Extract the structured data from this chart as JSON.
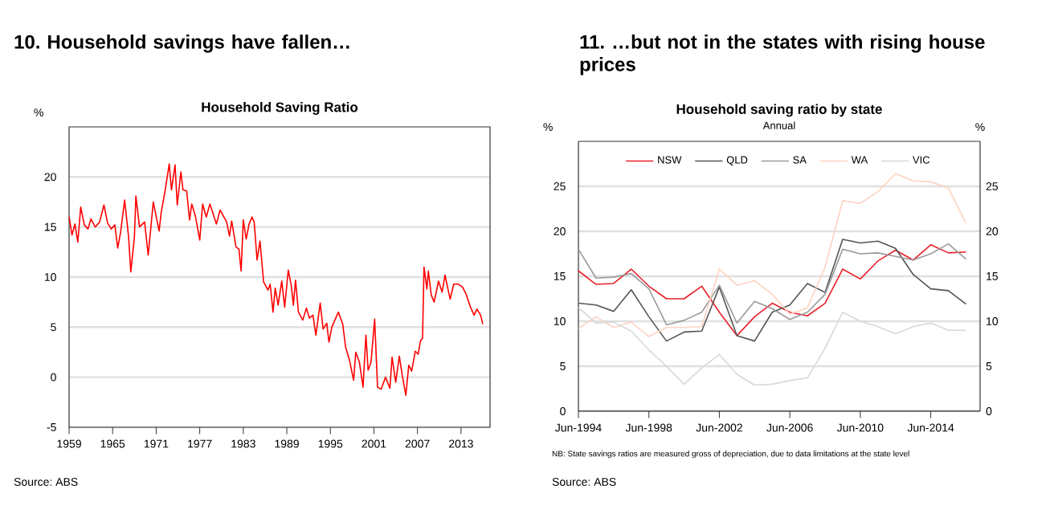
{
  "chart_data": [
    {
      "type": "line",
      "title": "Household Saving Ratio",
      "ylabel": "%",
      "annotations": [
        "10. Household savings have fallen…",
        "Source: ABS"
      ],
      "xlim": [
        1959,
        2017
      ],
      "ylim": [
        -5,
        25
      ],
      "xticks": [
        1959,
        1965,
        1971,
        1977,
        1983,
        1989,
        1995,
        2001,
        2007,
        2013
      ],
      "yticks": [
        -5,
        0,
        5,
        10,
        15,
        20
      ],
      "grid": "y",
      "marker": "none",
      "line_style": "solid",
      "series": [
        {
          "color": "#ff0000",
          "x": [
            1959.0,
            1959.4,
            1959.8,
            1960.2,
            1960.6,
            1961.1,
            1961.6,
            1962.0,
            1962.6,
            1963.2,
            1963.8,
            1964.3,
            1964.8,
            1965.3,
            1965.7,
            1966.1,
            1966.65,
            1967.2,
            1967.5,
            1968.0,
            1968.2,
            1968.7,
            1969.4,
            1969.9,
            1970.6,
            1971.4,
            1971.7,
            1972.2,
            1972.8,
            1973.1,
            1973.6,
            1973.9,
            1974.4,
            1974.7,
            1975.2,
            1975.6,
            1975.9,
            1976.4,
            1977.0,
            1977.4,
            1977.9,
            1978.4,
            1979.3,
            1979.8,
            1980.7,
            1981.1,
            1981.4,
            1982.0,
            1982.4,
            1982.7,
            1983.0,
            1983.4,
            1983.8,
            1984.2,
            1984.5,
            1984.9,
            1985.3,
            1985.8,
            1986.4,
            1986.7,
            1987.1,
            1987.4,
            1987.8,
            1988.3,
            1988.7,
            1989.2,
            1989.6,
            1989.9,
            1990.2,
            1990.6,
            1991.2,
            1991.7,
            1992.1,
            1992.6,
            1993.0,
            1993.6,
            1994.0,
            1994.5,
            1994.8,
            1995.2,
            1996.1,
            1996.7,
            1997.1,
            1997.6,
            1998.2,
            1998.5,
            1999.0,
            1999.5,
            1999.9,
            2000.2,
            2000.6,
            2001.1,
            2001.5,
            2002.0,
            2002.6,
            2003.2,
            2003.5,
            2004.0,
            2004.5,
            2004.9,
            2005.4,
            2005.8,
            2006.2,
            2006.7,
            2007.1,
            2007.4,
            2007.7,
            2007.9,
            2008.3,
            2008.5,
            2008.9,
            2009.3,
            2009.9,
            2010.4,
            2010.8,
            2011.2,
            2011.5,
            2012.0,
            2012.6,
            2013.2,
            2013.7,
            2014.3,
            2014.8,
            2015.2,
            2015.7,
            2016.0
          ],
          "values": [
            16.0,
            14.2,
            15.3,
            13.5,
            17.0,
            15.2,
            14.8,
            15.8,
            15.0,
            15.5,
            17.2,
            15.4,
            14.8,
            15.2,
            12.9,
            14.5,
            17.7,
            14.0,
            10.5,
            14.0,
            18.1,
            15.0,
            15.5,
            12.2,
            17.5,
            14.6,
            16.5,
            18.5,
            21.3,
            18.7,
            21.2,
            17.2,
            20.5,
            18.7,
            18.6,
            15.7,
            17.3,
            16.1,
            13.7,
            17.3,
            16.0,
            17.3,
            15.3,
            16.7,
            15.5,
            14.1,
            15.6,
            13.0,
            12.8,
            10.6,
            15.7,
            13.8,
            15.3,
            16.0,
            15.5,
            11.7,
            13.6,
            9.5,
            8.7,
            9.3,
            6.5,
            8.9,
            7.2,
            9.6,
            7.0,
            10.7,
            9.2,
            7.2,
            9.7,
            6.5,
            5.7,
            6.9,
            5.9,
            6.2,
            4.2,
            7.4,
            4.8,
            5.4,
            3.5,
            5.0,
            6.5,
            5.3,
            3.0,
            1.8,
            -0.3,
            2.5,
            1.5,
            -1.0,
            4.2,
            0.7,
            1.5,
            5.8,
            -1.0,
            -1.2,
            0.0,
            -1.1,
            2.0,
            -0.5,
            2.1,
            0.2,
            -1.8,
            1.2,
            0.6,
            2.6,
            2.3,
            3.6,
            3.9,
            11.0,
            8.8,
            10.6,
            8.2,
            7.5,
            9.6,
            8.5,
            10.2,
            8.8,
            7.8,
            9.3,
            9.3,
            9.0,
            8.3,
            7.0,
            6.2,
            6.8,
            6.2,
            5.3
          ]
        }
      ]
    },
    {
      "type": "line",
      "title": "Household saving ratio by state",
      "subtitle": "Annual",
      "ylabel": "%",
      "y2label": "%",
      "annotations": [
        "11. …but not in the states with rising house prices",
        "NB: State savings ratios are measured gross of depreciation, due to data limitations at the state level",
        "Source: ABS"
      ],
      "categories": [
        "Jun-1994",
        null,
        null,
        null,
        "Jun-1998",
        null,
        null,
        null,
        "Jun-2002",
        null,
        null,
        null,
        "Jun-2006",
        null,
        null,
        null,
        "Jun-2010",
        null,
        null,
        null,
        "Jun-2014",
        null,
        null
      ],
      "ylim": [
        0,
        30
      ],
      "y2lim": [
        0,
        30
      ],
      "yticks": [
        0,
        5,
        10,
        15,
        20,
        25
      ],
      "y2ticks": [
        0,
        5,
        10,
        15,
        20,
        25
      ],
      "grid": "y",
      "legend": "top",
      "marker": "none",
      "line_style": "solid",
      "series": [
        {
          "name": "NSW",
          "color": "#e8202a",
          "values": [
            15.6,
            14.1,
            14.2,
            15.8,
            13.9,
            12.5,
            12.5,
            13.9,
            11.0,
            8.4,
            10.5,
            12.0,
            11.0,
            10.6,
            12.0,
            15.8,
            14.7,
            16.7,
            17.9,
            16.8,
            18.5,
            17.6,
            17.7
          ]
        },
        {
          "name": "QLD",
          "color": "#555555",
          "values": [
            12.0,
            11.8,
            11.1,
            13.5,
            10.5,
            7.8,
            8.8,
            8.9,
            13.8,
            8.4,
            7.8,
            11.0,
            11.8,
            14.2,
            13.2,
            19.1,
            18.7,
            18.9,
            18.1,
            15.2,
            13.6,
            13.4,
            11.9
          ]
        },
        {
          "name": "SA",
          "color": "#9a9a9a",
          "values": [
            18.0,
            14.8,
            14.9,
            15.3,
            13.6,
            9.6,
            10.1,
            11.0,
            14.0,
            9.8,
            12.2,
            11.4,
            10.2,
            11.0,
            13.0,
            18.0,
            17.5,
            17.6,
            17.2,
            16.8,
            17.5,
            18.6,
            16.9
          ]
        },
        {
          "name": "WA",
          "color": "#fcd3c1",
          "values": [
            9.2,
            10.5,
            9.3,
            9.9,
            8.3,
            9.3,
            9.3,
            9.4,
            15.8,
            14.0,
            14.5,
            13.0,
            10.8,
            11.5,
            16.0,
            23.4,
            23.1,
            24.4,
            26.4,
            25.6,
            25.5,
            24.8,
            20.9
          ]
        },
        {
          "name": "VIC",
          "color": "#d8d8d8",
          "values": [
            11.5,
            9.8,
            9.9,
            8.9,
            6.8,
            5.0,
            3.0,
            4.8,
            6.3,
            4.1,
            2.9,
            3.0,
            3.4,
            3.7,
            7.0,
            11.0,
            10.0,
            9.4,
            8.6,
            9.4,
            9.8,
            9.0,
            9.0
          ]
        }
      ]
    }
  ]
}
